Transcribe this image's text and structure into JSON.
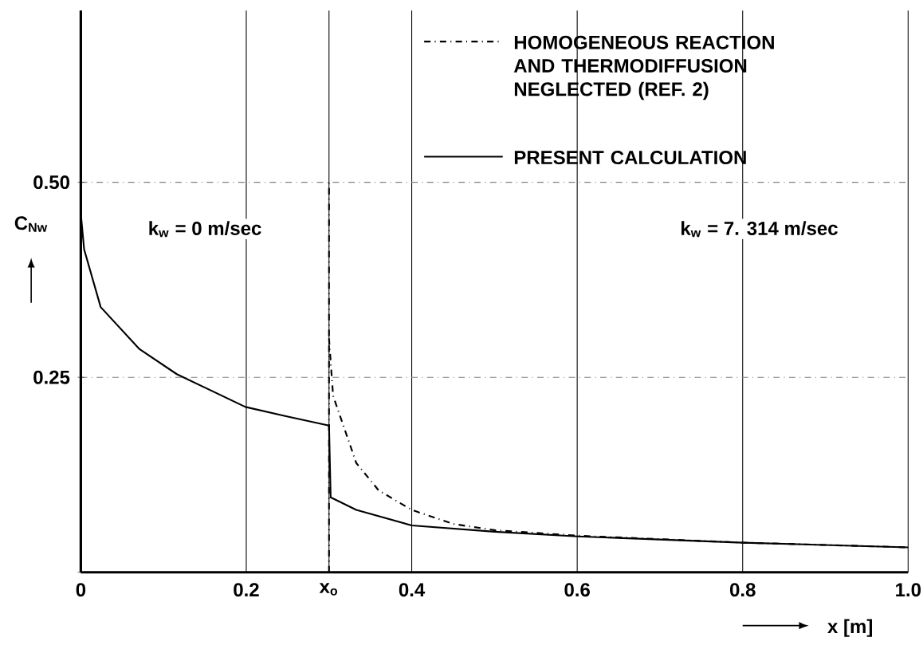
{
  "chart_data": {
    "type": "line",
    "xlabel": "x [m]",
    "ylabel": "C$_{Nw}$",
    "xlim": [
      0,
      1.0
    ],
    "ylim": [
      0,
      0.72
    ],
    "xticks": [
      0,
      0.2,
      {
        "value": 0.3,
        "label": "x$_{o}$"
      },
      0.4,
      0.6,
      0.8,
      {
        "value": 1.0,
        "label": "1.0"
      }
    ],
    "yticks": [
      {
        "value": 0,
        "label": null
      },
      0.25,
      {
        "value": 0.5,
        "label": "0.50"
      }
    ],
    "grid": true,
    "legend": "top right",
    "ref_lines": [
      {
        "axis": "x",
        "value": 0.3,
        "line_style": "dashdot"
      }
    ],
    "annotations": [
      "k$_{w}$ = 0 m/sec",
      "k$_{w}$ = 7. 314 m/sec"
    ],
    "series": [
      {
        "name": "HOMOGENEOUS REACTION AND THERMODIFFUSION NEGLECTED (REF. 2)",
        "color": "#000000",
        "line_style": "dashdot",
        "x": [
          0.3,
          0.305,
          0.333,
          0.36,
          0.4,
          0.45,
          0.5,
          0.6,
          0.8,
          1.0
        ],
        "values": [
          0.3,
          0.226,
          0.14,
          0.105,
          0.08,
          0.062,
          0.054,
          0.047,
          0.038,
          0.032
        ]
      },
      {
        "name": "PRESENT CALCULATION",
        "color": "#000000",
        "line_style": "solid",
        "x": [
          0,
          0.004,
          0.024,
          0.071,
          0.116,
          0.199,
          0.248,
          0.3,
          0.302,
          0.333,
          0.4,
          0.5,
          0.6,
          0.8,
          1.0
        ],
        "values": [
          0.46,
          0.414,
          0.34,
          0.286,
          0.254,
          0.212,
          0.2,
          0.188,
          0.096,
          0.08,
          0.06,
          0.052,
          0.046,
          0.038,
          0.032
        ]
      }
    ]
  }
}
